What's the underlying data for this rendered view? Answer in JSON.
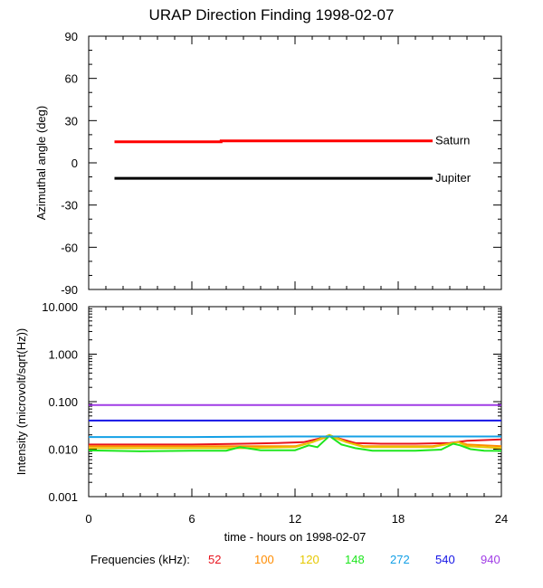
{
  "chart_data": [
    {
      "type": "line",
      "title": "URAP Direction Finding  1998-02-07",
      "ylabel": "Azimuthal angle (deg)",
      "xlim": [
        0,
        24
      ],
      "ylim": [
        -90,
        90
      ],
      "yticks": [
        90,
        60,
        30,
        0,
        -30,
        -60,
        -90
      ],
      "ytick_labels": [
        "90",
        "60",
        "30",
        "0",
        "-30",
        "-60",
        "-90"
      ],
      "series": [
        {
          "name": "Saturn",
          "color": "#ff0000",
          "x": [
            1.5,
            7.7,
            7.7,
            20
          ],
          "values": [
            15,
            15,
            15.6,
            15.6
          ]
        },
        {
          "name": "Jupiter",
          "color": "#000000",
          "x": [
            1.5,
            20
          ],
          "values": [
            -11,
            -11
          ]
        }
      ]
    },
    {
      "type": "line",
      "ylabel": "Intensity (microvolt/sqrt(Hz))",
      "xlabel": "time - hours on 1998-02-07",
      "xlim": [
        0,
        24
      ],
      "ylim": [
        0.001,
        10
      ],
      "yscale": "log",
      "xticks": [
        0,
        6,
        12,
        18,
        24
      ],
      "xtick_labels": [
        "0",
        "6",
        "12",
        "18",
        "24"
      ],
      "yticks": [
        10,
        1,
        0.1,
        0.01,
        0.001
      ],
      "ytick_labels": [
        "10.000",
        "1.000",
        "0.100",
        "0.010",
        "0.001"
      ],
      "legend_title": "Frequencies (kHz):",
      "series": [
        {
          "name": "52",
          "color": "#e8141e",
          "x": [
            0,
            6,
            9,
            11,
            12.5,
            13.5,
            14,
            14.5,
            15.5,
            17,
            19,
            21,
            22,
            24
          ],
          "values": [
            0.0125,
            0.0125,
            0.013,
            0.0135,
            0.014,
            0.017,
            0.019,
            0.017,
            0.0135,
            0.013,
            0.013,
            0.0135,
            0.015,
            0.016
          ]
        },
        {
          "name": "100",
          "color": "#ff8c00",
          "x": [
            0,
            6,
            10,
            12,
            13,
            14,
            15,
            16,
            20,
            21,
            21.5,
            22,
            24
          ],
          "values": [
            0.0115,
            0.0115,
            0.0115,
            0.0115,
            0.014,
            0.019,
            0.014,
            0.0115,
            0.0115,
            0.013,
            0.014,
            0.0125,
            0.0115
          ]
        },
        {
          "name": "120",
          "color": "#e6c800",
          "x": [
            0,
            9,
            12,
            13,
            14,
            15,
            16,
            20,
            21,
            21.5,
            22,
            24
          ],
          "values": [
            0.0105,
            0.0105,
            0.011,
            0.014,
            0.02,
            0.014,
            0.011,
            0.011,
            0.013,
            0.014,
            0.0115,
            0.0105
          ]
        },
        {
          "name": "148",
          "color": "#1ee61e",
          "x": [
            0,
            3,
            6,
            8,
            8.8,
            10,
            12,
            12.8,
            13.3,
            14,
            14.7,
            15.5,
            16.5,
            19,
            20.5,
            21.2,
            21.6,
            22.2,
            23,
            24
          ],
          "values": [
            0.0094,
            0.009,
            0.0093,
            0.0093,
            0.011,
            0.0095,
            0.0095,
            0.012,
            0.011,
            0.019,
            0.0125,
            0.0105,
            0.0093,
            0.0093,
            0.0098,
            0.013,
            0.012,
            0.01,
            0.0093,
            0.0092
          ]
        },
        {
          "name": "272",
          "color": "#14a0e6",
          "x": [
            0,
            6,
            12,
            18,
            24
          ],
          "values": [
            0.018,
            0.018,
            0.0185,
            0.0185,
            0.0185
          ]
        },
        {
          "name": "540",
          "color": "#1414e6",
          "x": [
            0,
            6,
            12,
            18,
            24
          ],
          "values": [
            0.04,
            0.04,
            0.04,
            0.04,
            0.04
          ]
        },
        {
          "name": "940",
          "color": "#a03ce6",
          "x": [
            0,
            6,
            12,
            18,
            24
          ],
          "values": [
            0.085,
            0.085,
            0.085,
            0.085,
            0.085
          ]
        }
      ]
    }
  ]
}
